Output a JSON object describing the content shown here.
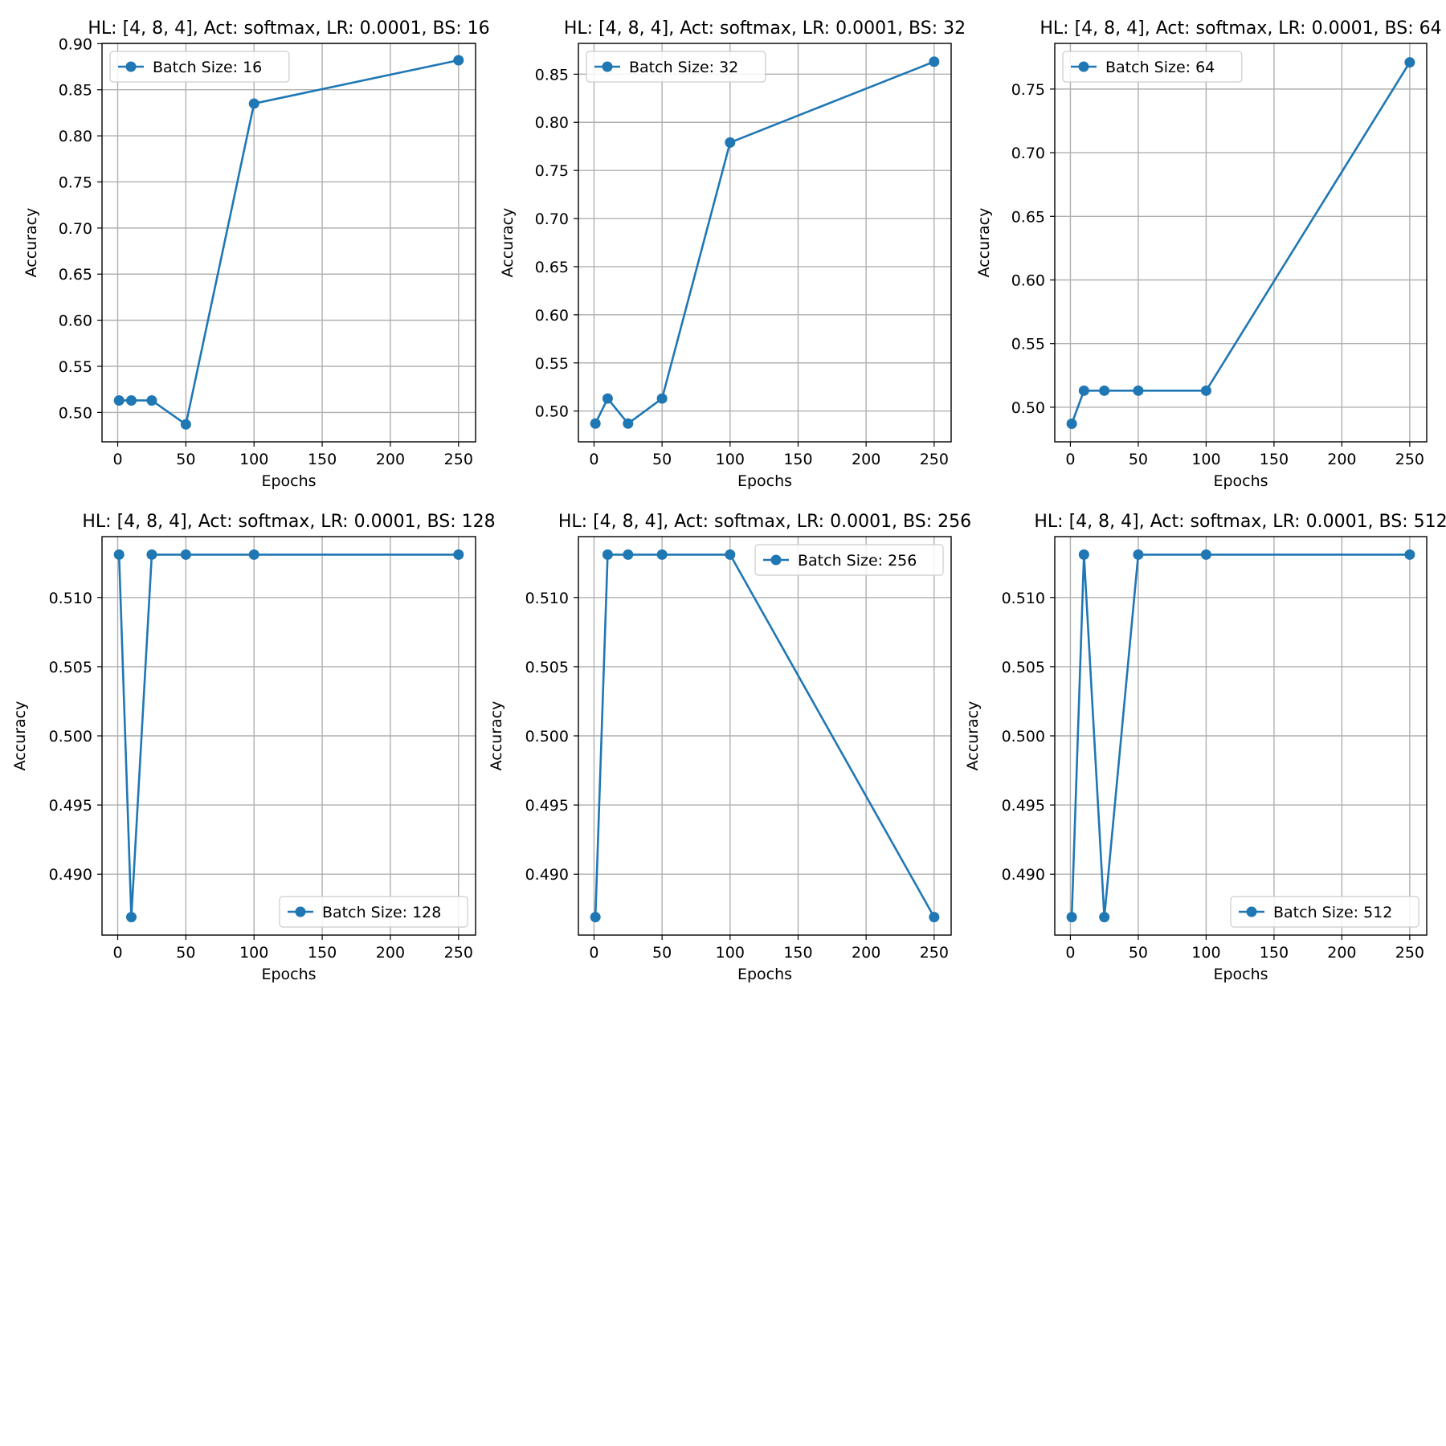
{
  "colors": {
    "series": "#1f77b4",
    "grid": "#b0b0b0",
    "axes": "#000000",
    "legend_border": "#cccccc",
    "background": "#ffffff"
  },
  "chart_data": [
    {
      "type": "line",
      "title": "HL: [4, 8, 4], Act: softmax, LR: 0.0001, BS: 16",
      "xlabel": "Epochs",
      "ylabel": "Accuracy",
      "x": [
        1,
        10,
        25,
        50,
        100,
        250
      ],
      "series": [
        {
          "name": "Batch Size: 16",
          "values": [
            0.513,
            0.513,
            0.513,
            0.487,
            0.835,
            0.882
          ]
        }
      ],
      "xlim": [
        -11.5,
        262.5
      ],
      "ylim": [
        0.4681,
        0.9003
      ],
      "xticks": [
        0,
        50,
        100,
        150,
        200,
        250
      ],
      "xtick_labels": [
        "0",
        "50",
        "100",
        "150",
        "200",
        "250"
      ],
      "yticks": [
        0.5,
        0.55,
        0.6,
        0.65,
        0.7,
        0.75,
        0.8,
        0.85,
        0.9
      ],
      "ytick_labels": [
        "0.50",
        "0.55",
        "0.60",
        "0.65",
        "0.70",
        "0.75",
        "0.80",
        "0.85",
        "0.90"
      ],
      "grid": true,
      "legend_position": "upper-left"
    },
    {
      "type": "line",
      "title": "HL: [4, 8, 4], Act: softmax, LR: 0.0001, BS: 32",
      "xlabel": "Epochs",
      "ylabel": "Accuracy",
      "x": [
        1,
        10,
        25,
        50,
        100,
        250
      ],
      "series": [
        {
          "name": "Batch Size: 32",
          "values": [
            0.487,
            0.513,
            0.487,
            0.513,
            0.779,
            0.863
          ]
        }
      ],
      "xlim": [
        -11.5,
        262.5
      ],
      "ylim": [
        0.468,
        0.882
      ],
      "xticks": [
        0,
        50,
        100,
        150,
        200,
        250
      ],
      "xtick_labels": [
        "0",
        "50",
        "100",
        "150",
        "200",
        "250"
      ],
      "yticks": [
        0.5,
        0.55,
        0.6,
        0.65,
        0.7,
        0.75,
        0.8,
        0.85
      ],
      "ytick_labels": [
        "0.50",
        "0.55",
        "0.60",
        "0.65",
        "0.70",
        "0.75",
        "0.80",
        "0.85"
      ],
      "grid": true,
      "legend_position": "upper-left"
    },
    {
      "type": "line",
      "title": "HL: [4, 8, 4], Act: softmax, LR: 0.0001, BS: 64",
      "xlabel": "Epochs",
      "ylabel": "Accuracy",
      "x": [
        1,
        10,
        25,
        50,
        100,
        250
      ],
      "series": [
        {
          "name": "Batch Size: 64",
          "values": [
            0.487,
            0.513,
            0.513,
            0.513,
            0.513,
            0.771
          ]
        }
      ],
      "xlim": [
        -11.5,
        262.5
      ],
      "ylim": [
        0.4728,
        0.7859
      ],
      "xticks": [
        0,
        50,
        100,
        150,
        200,
        250
      ],
      "xtick_labels": [
        "0",
        "50",
        "100",
        "150",
        "200",
        "250"
      ],
      "yticks": [
        0.5,
        0.55,
        0.6,
        0.65,
        0.7,
        0.75
      ],
      "ytick_labels": [
        "0.50",
        "0.55",
        "0.60",
        "0.65",
        "0.70",
        "0.75"
      ],
      "grid": true,
      "legend_position": "upper-left"
    },
    {
      "type": "line",
      "title": "HL: [4, 8, 4], Act: softmax, LR: 0.0001, BS: 128",
      "xlabel": "Epochs",
      "ylabel": "Accuracy",
      "x": [
        1,
        10,
        25,
        50,
        100,
        250
      ],
      "series": [
        {
          "name": "Batch Size: 128",
          "values": [
            0.5131,
            0.4869,
            0.5131,
            0.5131,
            0.5131,
            0.5131
          ]
        }
      ],
      "xlim": [
        -11.5,
        262.5
      ],
      "ylim": [
        0.4856,
        0.5144
      ],
      "xticks": [
        0,
        50,
        100,
        150,
        200,
        250
      ],
      "xtick_labels": [
        "0",
        "50",
        "100",
        "150",
        "200",
        "250"
      ],
      "yticks": [
        0.49,
        0.495,
        0.5,
        0.505,
        0.51
      ],
      "ytick_labels": [
        "0.490",
        "0.495",
        "0.500",
        "0.505",
        "0.510"
      ],
      "grid": true,
      "legend_position": "lower-right"
    },
    {
      "type": "line",
      "title": "HL: [4, 8, 4], Act: softmax, LR: 0.0001, BS: 256",
      "xlabel": "Epochs",
      "ylabel": "Accuracy",
      "x": [
        1,
        10,
        25,
        50,
        100,
        250
      ],
      "series": [
        {
          "name": "Batch Size: 256",
          "values": [
            0.4869,
            0.5131,
            0.5131,
            0.5131,
            0.5131,
            0.4869
          ]
        }
      ],
      "xlim": [
        -11.5,
        262.5
      ],
      "ylim": [
        0.4856,
        0.5144
      ],
      "xticks": [
        0,
        50,
        100,
        150,
        200,
        250
      ],
      "xtick_labels": [
        "0",
        "50",
        "100",
        "150",
        "200",
        "250"
      ],
      "yticks": [
        0.49,
        0.495,
        0.5,
        0.505,
        0.51
      ],
      "ytick_labels": [
        "0.490",
        "0.495",
        "0.500",
        "0.505",
        "0.510"
      ],
      "grid": true,
      "legend_position": "upper-right"
    },
    {
      "type": "line",
      "title": "HL: [4, 8, 4], Act: softmax, LR: 0.0001, BS: 512",
      "xlabel": "Epochs",
      "ylabel": "Accuracy",
      "x": [
        1,
        10,
        25,
        50,
        100,
        250
      ],
      "series": [
        {
          "name": "Batch Size: 512",
          "values": [
            0.4869,
            0.5131,
            0.4869,
            0.5131,
            0.5131,
            0.5131
          ]
        }
      ],
      "xlim": [
        -11.5,
        262.5
      ],
      "ylim": [
        0.4856,
        0.5144
      ],
      "xticks": [
        0,
        50,
        100,
        150,
        200,
        250
      ],
      "xtick_labels": [
        "0",
        "50",
        "100",
        "150",
        "200",
        "250"
      ],
      "yticks": [
        0.49,
        0.495,
        0.5,
        0.505,
        0.51
      ],
      "ytick_labels": [
        "0.490",
        "0.495",
        "0.500",
        "0.505",
        "0.510"
      ],
      "grid": true,
      "legend_position": "lower-right"
    }
  ]
}
